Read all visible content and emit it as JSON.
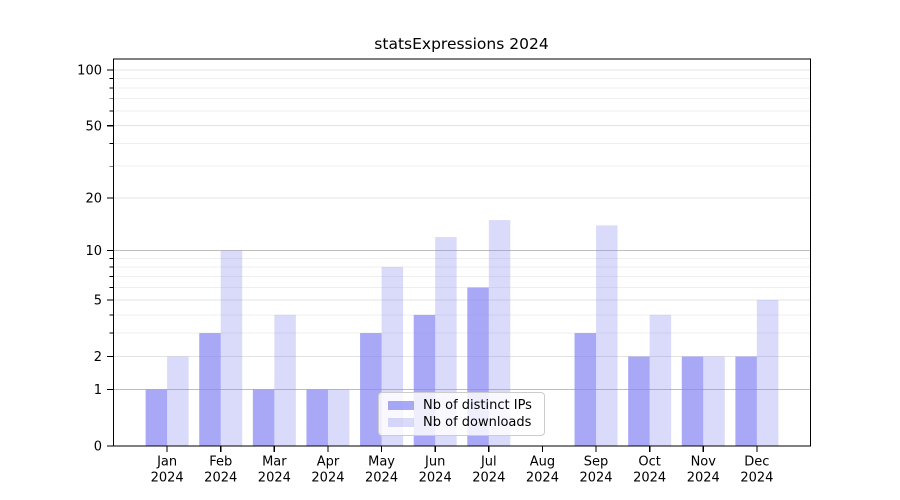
{
  "chart_data": {
    "type": "bar",
    "title": "statsExpressions 2024",
    "categories": [
      "Jan",
      "Feb",
      "Mar",
      "Apr",
      "May",
      "Jun",
      "Jul",
      "Aug",
      "Sep",
      "Oct",
      "Nov",
      "Dec"
    ],
    "x_year_label": "2024",
    "series": [
      {
        "name": "Nb of distinct IPs",
        "values": [
          1,
          3,
          1,
          1,
          3,
          4,
          6,
          0,
          3,
          2,
          2,
          2
        ],
        "color": "rgba(134,134,243,0.72)"
      },
      {
        "name": "Nb of downloads",
        "values": [
          2,
          10,
          4,
          1,
          8,
          12,
          15,
          0,
          14,
          4,
          2,
          5
        ],
        "color": "rgba(134,134,243,0.30)"
      }
    ],
    "yscale": "log1p",
    "ylim": [
      0,
      100
    ],
    "yticks": [
      0,
      1,
      2,
      5,
      10,
      20,
      50,
      100
    ],
    "yticks_strong": [
      1,
      10
    ],
    "minor_yticks": [
      3,
      4,
      6,
      7,
      8,
      9,
      30,
      40,
      60,
      70,
      80,
      90
    ],
    "grid": true,
    "legend_position": "lower center",
    "style": {
      "bar_base_color": "#8686f3",
      "grid_strong": "#bdbdbd",
      "grid_major": "#e3e3e3",
      "grid_minor": "#efefef",
      "axis_color": "#000000",
      "text_color": "#000000",
      "legend_border": "#cccccc",
      "background": "#ffffff"
    }
  }
}
